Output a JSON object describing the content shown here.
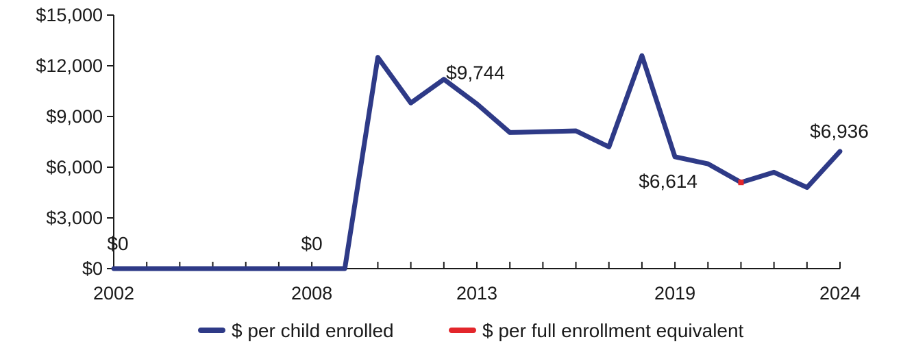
{
  "chart_data": {
    "type": "line",
    "title": "",
    "xlabel": "",
    "ylabel": "",
    "x": [
      2002,
      2003,
      2004,
      2005,
      2006,
      2007,
      2008,
      2009,
      2010,
      2011,
      2012,
      2013,
      2014,
      2015,
      2016,
      2017,
      2018,
      2019,
      2020,
      2021,
      2022,
      2023,
      2024
    ],
    "x_tick_labels": [
      "2002",
      "2008",
      "2013",
      "2019",
      "2024"
    ],
    "x_tick_values": [
      2002,
      2008,
      2013,
      2019,
      2024
    ],
    "ylim": [
      0,
      15000
    ],
    "y_ticks": [
      0,
      3000,
      6000,
      9000,
      12000,
      15000
    ],
    "y_tick_labels": [
      "$0",
      "$3,000",
      "$6,000",
      "$9,000",
      "$12,000",
      "$15,000"
    ],
    "series": [
      {
        "name": "$ per child enrolled",
        "color": "#2E3A87",
        "values": [
          0,
          0,
          0,
          0,
          0,
          0,
          0,
          0,
          12500,
          9800,
          11200,
          9744,
          8050,
          8100,
          8150,
          7200,
          12600,
          6614,
          6200,
          5100,
          5700,
          4800,
          6936
        ]
      },
      {
        "name": "$ per full enrollment equivalent",
        "color": "#E3262B",
        "values": [
          null,
          null,
          null,
          null,
          null,
          null,
          null,
          null,
          null,
          null,
          null,
          null,
          null,
          null,
          null,
          null,
          null,
          null,
          null,
          5100,
          null,
          null,
          null
        ]
      }
    ],
    "annotations": [
      {
        "x": 2002,
        "y": 0,
        "text": "$0"
      },
      {
        "x": 2008,
        "y": 0,
        "text": "$0"
      },
      {
        "x": 2013,
        "y": 9744,
        "text": "$9,744"
      },
      {
        "x": 2019,
        "y": 6614,
        "text": "$6,614"
      },
      {
        "x": 2024,
        "y": 6936,
        "text": "$6,936"
      }
    ],
    "legend": {
      "position": "bottom",
      "entries": [
        "$ per child enrolled",
        "$ per full enrollment equivalent"
      ]
    },
    "grid": false
  }
}
